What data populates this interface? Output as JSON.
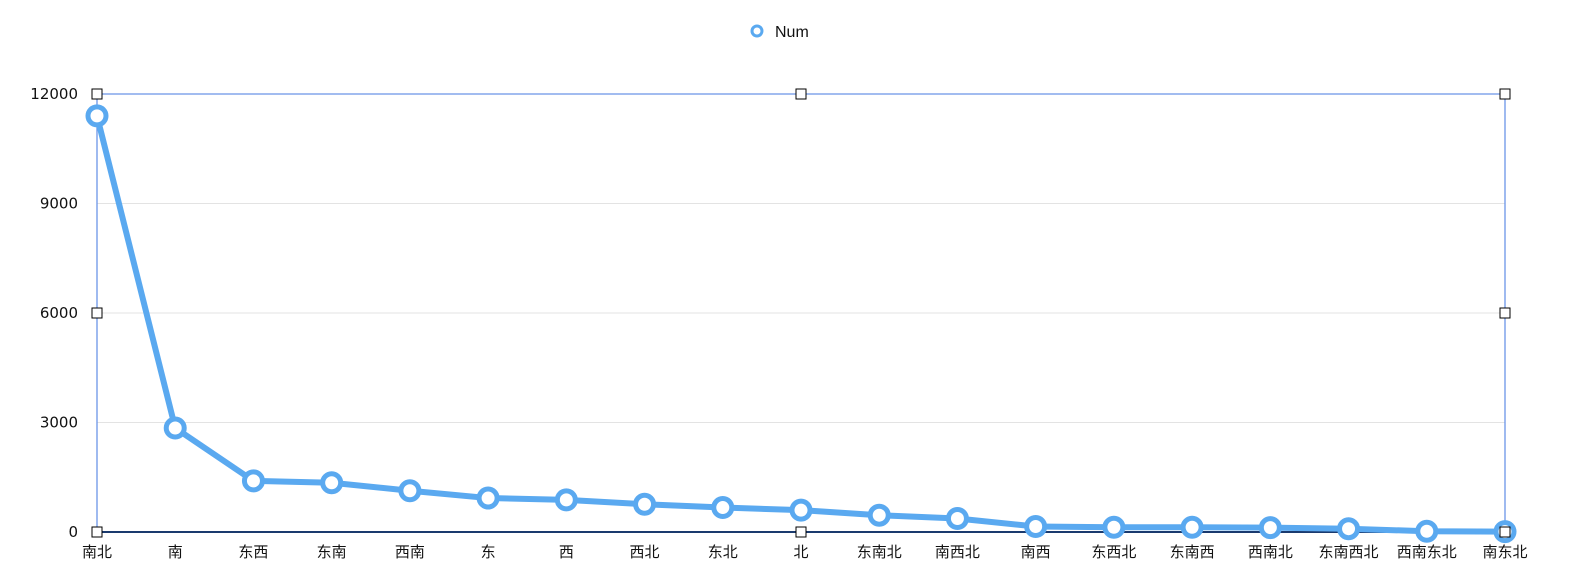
{
  "chart_data": {
    "type": "line",
    "legend": {
      "position": "top-center",
      "entries": [
        "Num"
      ]
    },
    "categories": [
      "南北",
      "南",
      "东西",
      "东南",
      "西南",
      "东",
      "西",
      "西北",
      "东北",
      "北",
      "东南北",
      "南西北",
      "南西",
      "东西北",
      "东南西",
      "西南北",
      "东南西北",
      "西南东北",
      "南东北"
    ],
    "series": [
      {
        "name": "Num",
        "color": "#5aa9f0",
        "values": [
          11400,
          2850,
          1400,
          1350,
          1130,
          930,
          880,
          760,
          670,
          600,
          460,
          370,
          150,
          130,
          130,
          120,
          90,
          20,
          10
        ]
      }
    ],
    "ylim": [
      0,
      12000
    ],
    "yticks": [
      0,
      3000,
      6000,
      9000,
      12000
    ],
    "grid": true,
    "colors": {
      "series": "#5aa9f0",
      "grid": "#e3e3e3",
      "axis": "#1a3a6e",
      "selection": "#6b95e8"
    }
  }
}
